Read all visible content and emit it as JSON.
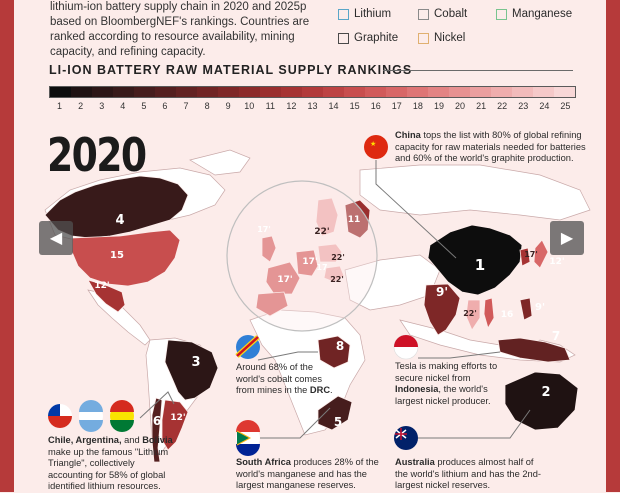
{
  "intro_text": "lithium-ion battery supply chain in 2020 and 2025p based on BloombergNEF's rankings. Countries are ranked according to resource availability, mining capacity, and refining capacity.",
  "legend": [
    {
      "label": "Lithium",
      "color": "#5aa6c8"
    },
    {
      "label": "Cobalt",
      "color": "#8a8a8a"
    },
    {
      "label": "Manganese",
      "color": "#79c48f"
    },
    {
      "label": "Graphite",
      "color": "#4a4a4a"
    },
    {
      "label": "Nickel",
      "color": "#e0b070"
    }
  ],
  "rankings_title": "LI-ION BATTERY RAW MATERIAL SUPPLY RANKINGS",
  "year": "2020",
  "nav": {
    "prev_icon": "chevron-left-icon",
    "next_icon": "chevron-right-icon"
  },
  "chart_data": {
    "type": "choropleth-map",
    "color_scale": {
      "ranks": [
        1,
        2,
        3,
        4,
        5,
        6,
        7,
        8,
        9,
        10,
        11,
        12,
        13,
        14,
        15,
        16,
        17,
        18,
        19,
        20,
        21,
        22,
        23,
        24,
        25
      ],
      "colors": [
        "#0d0d0d",
        "#1f1212",
        "#2c1616",
        "#381a1a",
        "#461d1d",
        "#541f1f",
        "#622222",
        "#702424",
        "#7e2727",
        "#8c2a2a",
        "#9a2e2e",
        "#a63333",
        "#b23a3a",
        "#bd4343",
        "#c84e4e",
        "#d15a5a",
        "#d86767",
        "#de7575",
        "#e38383",
        "#e79191",
        "#eb9f9f",
        "#efadad",
        "#f2bbbb",
        "#f5c9c9",
        "#f8d7d7"
      ]
    },
    "countries": [
      {
        "name": "China",
        "rank": "1"
      },
      {
        "name": "Australia",
        "rank": "2"
      },
      {
        "name": "Brazil",
        "rank": "3"
      },
      {
        "name": "Canada",
        "rank": "4"
      },
      {
        "name": "South Africa",
        "rank": "5"
      },
      {
        "name": "Chile",
        "rank": "6"
      },
      {
        "name": "Indonesia",
        "rank": "7"
      },
      {
        "name": "DRC",
        "rank": "8"
      },
      {
        "name": "India",
        "rank": "9'"
      },
      {
        "name": "Philippines",
        "rank": "9'"
      },
      {
        "name": "Russia",
        "rank": "11"
      },
      {
        "name": "Mexico",
        "rank": "12'"
      },
      {
        "name": "Argentina",
        "rank": "12'"
      },
      {
        "name": "South Korea",
        "rank": "12'"
      },
      {
        "name": "United States",
        "rank": "15"
      },
      {
        "name": "Vietnam",
        "rank": "16"
      },
      {
        "name": "United Kingdom",
        "rank": "17'"
      },
      {
        "name": "Spain",
        "rank": "17'"
      },
      {
        "name": "France",
        "rank": "17'"
      },
      {
        "name": "Germany",
        "rank": "17"
      },
      {
        "name": "Japan",
        "rank": "17'"
      },
      {
        "name": "Finland",
        "rank": "22'"
      },
      {
        "name": "Poland",
        "rank": "22'"
      },
      {
        "name": "Hungary",
        "rank": "22'"
      },
      {
        "name": "Thailand",
        "rank": "22'"
      }
    ]
  },
  "annotations": {
    "china": {
      "bold": "China",
      "text": " tops the list with 80% of global refining capacity for raw materials needed for batteries and 60% of the world's graphite production."
    },
    "drc": {
      "text1": "Around 68% of the world's cobalt comes from mines in the ",
      "bold": "DRC",
      "text2": "."
    },
    "tesla": {
      "text1": "Tesla is making efforts to secure nickel from ",
      "bold": "Indonesia",
      "text2": ", the world's largest nickel producer."
    },
    "triangle": {
      "bold1": "Chile, Argentina,",
      "mid": " and ",
      "bold2": "Bolivia",
      "text": " make up the famous \"Lithium Triangle\", collectively accounting for 58% of global identified lithium resources."
    },
    "south_africa": {
      "bold": "South Africa",
      "text": " produces 28% of the world's manganese and has the largest manganese reserves."
    },
    "australia": {
      "bold": "Australia",
      "text": " produces almost half of the world's lithium and has the 2nd-largest nickel reserves."
    }
  }
}
